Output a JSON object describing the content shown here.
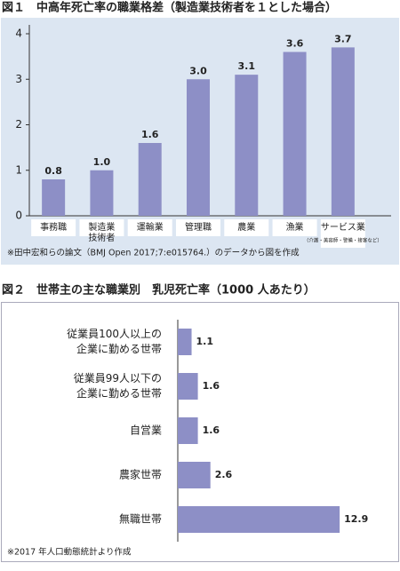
{
  "chart_data": [
    {
      "type": "bar",
      "title": "図１　中高年死亡率の職業格差（製造業技術者を１とした場合）",
      "categories": [
        [
          "事務職"
        ],
        [
          "製造業",
          "技術者"
        ],
        [
          "運輸業"
        ],
        [
          "管理職"
        ],
        [
          "農業"
        ],
        [
          "漁業"
        ],
        [
          "サービス業"
        ]
      ],
      "category_note": "（介護・美容師・警備・接客など）",
      "values": [
        0.8,
        1.0,
        1.6,
        3.0,
        3.1,
        3.6,
        3.7
      ],
      "value_labels": [
        "0.8",
        "1.0",
        "1.6",
        "3.0",
        "3.1",
        "3.6",
        "3.7"
      ],
      "color": "#8d8fc6",
      "ylim": [
        0,
        4
      ],
      "yticks": [
        0,
        1,
        2,
        3,
        4
      ],
      "note": "※田中宏和らの論文（BMJ Open 2017;7:e015764.）のデータから図を作成"
    },
    {
      "type": "hbar",
      "title": "図２　世帯主の主な職業別　乳児死亡率（1000 人あたり）",
      "categories": [
        [
          "従業員100人以上の",
          "企業に勤める世帯"
        ],
        [
          "従業員99人以下の",
          "企業に勤める世帯"
        ],
        [
          "自営業"
        ],
        [
          "農家世帯"
        ],
        [
          "無職世帯"
        ]
      ],
      "values": [
        1.1,
        1.6,
        1.6,
        2.6,
        12.9
      ],
      "color": "#8d8fc6",
      "xlim": [
        0,
        17
      ],
      "note": "※2017 年人口動態統計より作成"
    }
  ]
}
